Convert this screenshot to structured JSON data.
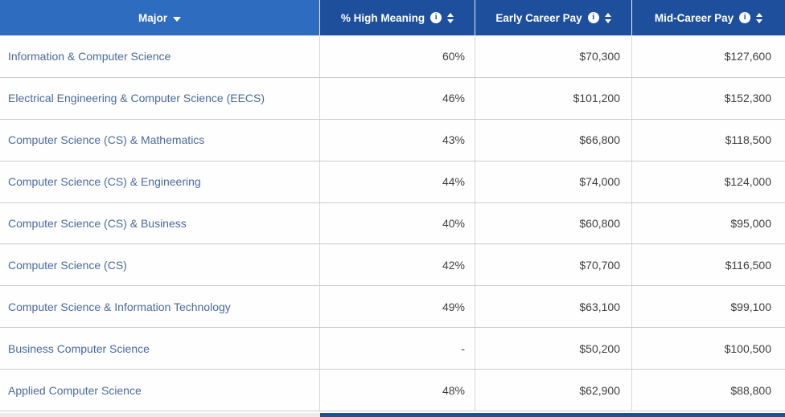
{
  "header": {
    "columns": [
      {
        "label": "Major",
        "sort_state": "descending",
        "icon": "caret-down-icon"
      },
      {
        "label": "% High Meaning",
        "icon": "info-icon",
        "sortable": true
      },
      {
        "label": "Early Career Pay",
        "icon": "info-icon",
        "sortable": true
      },
      {
        "label": "Mid-Career Pay",
        "icon": "info-icon",
        "sortable": true
      }
    ]
  },
  "table": {
    "rows": [
      {
        "major": "Information & Computer Science",
        "high_meaning": "60%",
        "early_career_pay": "$70,300",
        "mid_career_pay": "$127,600"
      },
      {
        "major": "Electrical Engineering & Computer Science (EECS)",
        "high_meaning": "46%",
        "early_career_pay": "$101,200",
        "mid_career_pay": "$152,300"
      },
      {
        "major": "Computer Science (CS) & Mathematics",
        "high_meaning": "43%",
        "early_career_pay": "$66,800",
        "mid_career_pay": "$118,500"
      },
      {
        "major": "Computer Science (CS) & Engineering",
        "high_meaning": "44%",
        "early_career_pay": "$74,000",
        "mid_career_pay": "$124,000"
      },
      {
        "major": "Computer Science (CS) & Business",
        "high_meaning": "40%",
        "early_career_pay": "$60,800",
        "mid_career_pay": "$95,000"
      },
      {
        "major": "Computer Science (CS)",
        "high_meaning": "42%",
        "early_career_pay": "$70,700",
        "mid_career_pay": "$116,500"
      },
      {
        "major": "Computer Science & Information Technology",
        "high_meaning": "49%",
        "early_career_pay": "$63,100",
        "mid_career_pay": "$99,100"
      },
      {
        "major": "Business Computer Science",
        "high_meaning": "-",
        "early_career_pay": "$50,200",
        "mid_career_pay": "$100,500"
      },
      {
        "major": "Applied Computer Science",
        "high_meaning": "48%",
        "early_career_pay": "$62,900",
        "mid_career_pay": "$88,800"
      }
    ]
  },
  "colors": {
    "major_header_bg": "#2e6cc0",
    "stat_header_bg": "#1d4f9d",
    "header_text": "#ffffff",
    "major_link_text": "#4a6a9c",
    "value_text": "#3e3e3e",
    "row_divider": "#cbcbcb"
  }
}
